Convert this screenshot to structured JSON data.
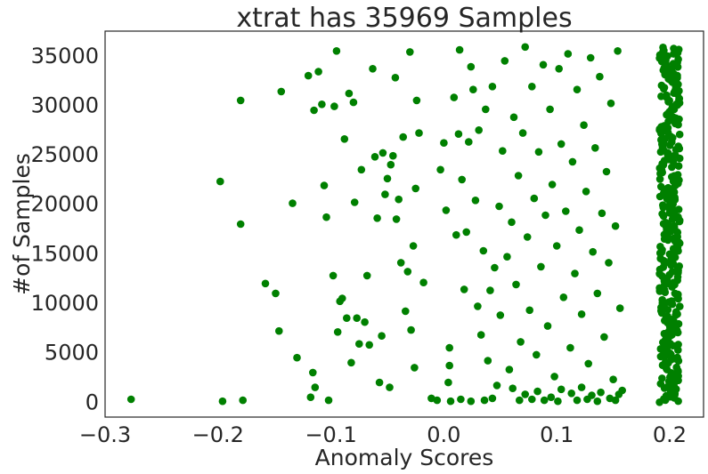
{
  "chart_data": {
    "type": "scatter",
    "title": "xtrat has 35969 Samples",
    "xlabel": "Anomaly Scores",
    "ylabel": "#of Samples",
    "xlim": [
      -0.3,
      0.23
    ],
    "ylim": [
      -1500,
      37500
    ],
    "xticks": [
      {
        "value": -0.3,
        "label": "−0.3"
      },
      {
        "value": -0.2,
        "label": "−0.2"
      },
      {
        "value": -0.1,
        "label": "−0.1"
      },
      {
        "value": 0.0,
        "label": "0.0"
      },
      {
        "value": 0.1,
        "label": "0.1"
      },
      {
        "value": 0.2,
        "label": "0.2"
      }
    ],
    "yticks": [
      {
        "value": 0,
        "label": "0"
      },
      {
        "value": 5000,
        "label": "5000"
      },
      {
        "value": 10000,
        "label": "10000"
      },
      {
        "value": 15000,
        "label": "15000"
      },
      {
        "value": 20000,
        "label": "20000"
      },
      {
        "value": 25000,
        "label": "25000"
      },
      {
        "value": 30000,
        "label": "30000"
      },
      {
        "value": 35000,
        "label": "35000"
      }
    ],
    "grid": false,
    "legend": "none",
    "marker_color": "#008000",
    "series": [
      {
        "points": [
          [
            -0.277,
            300
          ],
          [
            -0.198,
            22300
          ],
          [
            -0.196,
            100
          ],
          [
            -0.18,
            30500
          ],
          [
            -0.18,
            18000
          ],
          [
            -0.178,
            200
          ],
          [
            -0.158,
            12000
          ],
          [
            -0.149,
            11000
          ],
          [
            -0.146,
            7200
          ],
          [
            -0.144,
            31400
          ],
          [
            -0.134,
            20100
          ],
          [
            -0.13,
            4500
          ],
          [
            -0.12,
            33000
          ],
          [
            -0.118,
            500
          ],
          [
            -0.116,
            3000
          ],
          [
            -0.114,
            1500
          ],
          [
            -0.115,
            29500
          ],
          [
            -0.111,
            33400
          ],
          [
            -0.108,
            30100
          ],
          [
            -0.106,
            21900
          ],
          [
            -0.104,
            18700
          ],
          [
            -0.102,
            200
          ],
          [
            -0.098,
            12800
          ],
          [
            -0.095,
            35500
          ],
          [
            -0.097,
            29900
          ],
          [
            -0.094,
            7100
          ],
          [
            -0.092,
            10200
          ],
          [
            -0.09,
            10500
          ],
          [
            -0.088,
            26600
          ],
          [
            -0.086,
            8500
          ],
          [
            -0.084,
            31200
          ],
          [
            -0.082,
            4000
          ],
          [
            -0.08,
            30300
          ],
          [
            -0.079,
            20200
          ],
          [
            -0.077,
            8500
          ],
          [
            -0.075,
            5900
          ],
          [
            -0.073,
            23500
          ],
          [
            -0.07,
            8100
          ],
          [
            -0.068,
            12800
          ],
          [
            -0.066,
            5800
          ],
          [
            -0.063,
            33700
          ],
          [
            -0.061,
            24800
          ],
          [
            -0.059,
            18600
          ],
          [
            -0.057,
            2000
          ],
          [
            -0.055,
            6700
          ],
          [
            -0.054,
            25200
          ],
          [
            -0.052,
            21000
          ],
          [
            -0.05,
            22600
          ],
          [
            -0.048,
            1500
          ],
          [
            -0.047,
            24000
          ],
          [
            -0.045,
            24900
          ],
          [
            -0.043,
            32800
          ],
          [
            -0.042,
            18500
          ],
          [
            -0.04,
            20500
          ],
          [
            -0.038,
            14100
          ],
          [
            -0.036,
            26800
          ],
          [
            -0.034,
            9200
          ],
          [
            -0.032,
            13200
          ],
          [
            -0.03,
            35400
          ],
          [
            -0.029,
            7300
          ],
          [
            -0.027,
            15800
          ],
          [
            -0.026,
            3500
          ],
          [
            -0.025,
            21600
          ],
          [
            -0.024,
            30500
          ],
          [
            -0.022,
            27200
          ],
          [
            -0.018,
            12100
          ],
          [
            -0.003,
            23500
          ],
          [
            0.0,
            26200
          ],
          [
            0.002,
            19400
          ],
          [
            0.004,
            2000
          ],
          [
            0.005,
            5500
          ],
          [
            0.005,
            3700
          ],
          [
            0.009,
            30800
          ],
          [
            0.011,
            16900
          ],
          [
            0.013,
            27100
          ],
          [
            0.014,
            35600
          ],
          [
            0.016,
            22500
          ],
          [
            0.018,
            11400
          ],
          [
            0.02,
            17200
          ],
          [
            0.022,
            26300
          ],
          [
            0.024,
            33900
          ],
          [
            0.026,
            31600
          ],
          [
            0.028,
            20400
          ],
          [
            0.03,
            9700
          ],
          [
            0.031,
            27500
          ],
          [
            0.033,
            6800
          ],
          [
            0.035,
            15300
          ],
          [
            0.037,
            29600
          ],
          [
            0.039,
            4200
          ],
          [
            0.041,
            11300
          ],
          [
            0.043,
            31900
          ],
          [
            0.045,
            13600
          ],
          [
            0.047,
            1700
          ],
          [
            0.049,
            19800
          ],
          [
            0.05,
            8800
          ],
          [
            0.052,
            25400
          ],
          [
            0.054,
            34500
          ],
          [
            0.056,
            14700
          ],
          [
            0.058,
            3300
          ],
          [
            0.06,
            18200
          ],
          [
            0.062,
            28800
          ],
          [
            0.064,
            11900
          ],
          [
            0.066,
            22900
          ],
          [
            0.068,
            6100
          ],
          [
            0.07,
            27200
          ],
          [
            0.072,
            35900
          ],
          [
            0.074,
            16700
          ],
          [
            0.076,
            9300
          ],
          [
            0.078,
            31900
          ],
          [
            0.08,
            20600
          ],
          [
            0.082,
            4800
          ],
          [
            0.084,
            25300
          ],
          [
            0.086,
            13700
          ],
          [
            0.088,
            34100
          ],
          [
            0.09,
            18900
          ],
          [
            0.092,
            7700
          ],
          [
            0.094,
            29600
          ],
          [
            0.096,
            22000
          ],
          [
            0.098,
            2600
          ],
          [
            0.1,
            15800
          ],
          [
            0.102,
            33700
          ],
          [
            0.104,
            26100
          ],
          [
            0.106,
            10600
          ],
          [
            0.108,
            19300
          ],
          [
            0.11,
            35200
          ],
          [
            0.112,
            5500
          ],
          [
            0.114,
            24300
          ],
          [
            0.116,
            13000
          ],
          [
            0.118,
            31600
          ],
          [
            0.12,
            17400
          ],
          [
            0.122,
            8900
          ],
          [
            0.124,
            28000
          ],
          [
            0.126,
            21300
          ],
          [
            0.128,
            3900
          ],
          [
            0.13,
            34800
          ],
          [
            0.132,
            15200
          ],
          [
            0.134,
            25700
          ],
          [
            0.136,
            11000
          ],
          [
            0.138,
            32900
          ],
          [
            0.14,
            19100
          ],
          [
            0.142,
            6600
          ],
          [
            0.144,
            23300
          ],
          [
            0.146,
            14100
          ],
          [
            0.148,
            30200
          ],
          [
            0.15,
            2300
          ],
          [
            0.152,
            17800
          ],
          [
            0.154,
            35500
          ],
          [
            0.156,
            9500
          ],
          [
            0.158,
            1200
          ],
          [
            0.061,
            1400
          ],
          [
            0.072,
            800
          ],
          [
            0.083,
            1100
          ],
          [
            0.095,
            500
          ],
          [
            0.104,
            1300
          ],
          [
            0.113,
            900
          ],
          [
            0.122,
            1500
          ],
          [
            0.131,
            700
          ],
          [
            0.139,
            1000
          ],
          [
            0.147,
            400
          ],
          [
            0.155,
            800
          ],
          [
            0.067,
            200
          ],
          [
            0.078,
            300
          ],
          [
            0.089,
            200
          ],
          [
            0.101,
            100
          ],
          [
            0.118,
            200
          ],
          [
            0.127,
            300
          ],
          [
            0.136,
            100
          ],
          [
            0.152,
            200
          ],
          [
            0.043,
            400
          ],
          [
            0.036,
            200
          ],
          [
            0.024,
            100
          ],
          [
            0.015,
            300
          ],
          [
            0.006,
            100
          ],
          [
            -0.006,
            200
          ],
          [
            -0.011,
            400
          ]
        ]
      }
    ]
  }
}
